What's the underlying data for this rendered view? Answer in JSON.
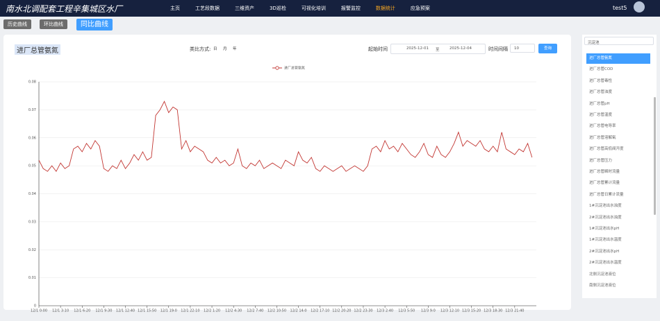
{
  "header": {
    "title": "南水北调配套工程辛集城区水厂",
    "nav": [
      "主页",
      "工艺段数据",
      "三维资产",
      "3D巡检",
      "可视化培训",
      "报警监控",
      "数据统计",
      "应急预案"
    ],
    "user": "test5"
  },
  "tabs": [
    "历史曲线",
    "环比曲线",
    "同比曲线"
  ],
  "query": {
    "compare_label": "类比方式:",
    "compare_options": [
      "日",
      "月",
      "年"
    ],
    "start_label": "起始时间",
    "start": "2025-12-01",
    "to": "至",
    "end": "2025-12-04",
    "interval_label": "时间间隔",
    "interval": "10",
    "button": "查询"
  },
  "sidebar": {
    "select": "沉淀池",
    "items": [
      "进厂总管氨氮",
      "进厂总管COD",
      "进厂总管毒性",
      "进厂总管浊度",
      "进厂总管pH",
      "进厂总管温度",
      "进厂总管电导率",
      "进厂总管溶解氧",
      "进厂总管高低阀开度",
      "进厂总管压力",
      "进厂总管瞬时流量",
      "进厂总管累计流量",
      "进厂总管日累计流量",
      "1#沉淀池出水浊度",
      "2#沉淀池出水浊度",
      "1#沉淀池出水pH",
      "1#沉淀池出水温度",
      "2#沉淀池出水pH",
      "2#沉淀池出水温度",
      "北侧沉淀池液位",
      "南侧沉淀池液位"
    ]
  },
  "chart_data": {
    "type": "line",
    "title": "进厂总管氨氮",
    "ylim": [
      0,
      0.08
    ],
    "yticks": [
      0,
      0.01,
      0.02,
      0.03,
      0.04,
      0.05,
      0.06,
      0.07,
      0.08
    ],
    "grid": true,
    "categories": [
      "12/1 0:00",
      null,
      null,
      null,
      null,
      "12/1 3:10",
      null,
      null,
      null,
      null,
      "12/1 6:20",
      null,
      null,
      null,
      null,
      "12/1 9:30",
      null,
      null,
      null,
      null,
      "12/1 12:40",
      null,
      null,
      null,
      null,
      "12/1 15:50",
      null,
      null,
      null,
      null,
      "12/1 19:0",
      null,
      null,
      null,
      null,
      "12/1 22:10",
      null,
      null,
      null,
      null,
      "12/2 1:20",
      null,
      null,
      null,
      null,
      "12/2 4:30",
      null,
      null,
      null,
      null,
      "12/2 7:40",
      null,
      null,
      null,
      null,
      "12/2 10:50",
      null,
      null,
      null,
      null,
      "12/2 14:0",
      null,
      null,
      null,
      null,
      "12/2 17:10",
      null,
      null,
      null,
      null,
      "12/2 20:20",
      null,
      null,
      null,
      null,
      "12/2 23:30",
      null,
      null,
      null,
      null,
      "12/3 2:40",
      null,
      null,
      null,
      null,
      "12/3 5:50",
      null,
      null,
      null,
      null,
      "12/3 9:0",
      null,
      null,
      null,
      null,
      "12/3 12:10",
      null,
      null,
      null,
      null,
      "12/3 15:20",
      null,
      null,
      null,
      null,
      "12/3 18:30",
      null,
      null,
      null,
      null,
      "12/3 21:40",
      null,
      null,
      null,
      null
    ],
    "series": [
      {
        "name": "进厂总管氨氮",
        "color": "#c23531",
        "values": [
          0.052,
          0.049,
          0.048,
          0.05,
          0.048,
          0.051,
          0.049,
          0.05,
          0.056,
          0.057,
          0.055,
          0.058,
          0.056,
          0.059,
          0.057,
          0.049,
          0.048,
          0.05,
          0.049,
          0.052,
          0.049,
          0.051,
          0.054,
          0.052,
          0.055,
          0.052,
          0.053,
          0.068,
          0.07,
          0.073,
          0.069,
          0.071,
          0.07,
          0.056,
          0.059,
          0.055,
          0.057,
          0.056,
          0.055,
          0.052,
          0.051,
          0.053,
          0.051,
          0.052,
          0.05,
          0.051,
          0.056,
          0.05,
          0.049,
          0.051,
          0.05,
          0.052,
          0.049,
          0.05,
          0.051,
          0.05,
          0.049,
          0.052,
          0.051,
          0.05,
          0.055,
          0.052,
          0.051,
          0.053,
          0.049,
          0.048,
          0.05,
          0.049,
          0.048,
          0.049,
          0.05,
          0.048,
          0.049,
          0.05,
          0.049,
          0.048,
          0.05,
          0.056,
          0.057,
          0.055,
          0.059,
          0.056,
          0.057,
          0.055,
          0.058,
          0.056,
          0.054,
          0.053,
          0.055,
          0.058,
          0.054,
          0.053,
          0.057,
          0.054,
          0.053,
          0.055,
          0.058,
          0.062,
          0.057,
          0.059,
          0.058,
          0.057,
          0.059,
          0.056,
          0.055,
          0.057,
          0.055,
          0.062,
          0.056,
          0.055,
          0.054,
          0.056,
          0.055,
          0.058,
          0.053
        ]
      }
    ]
  }
}
